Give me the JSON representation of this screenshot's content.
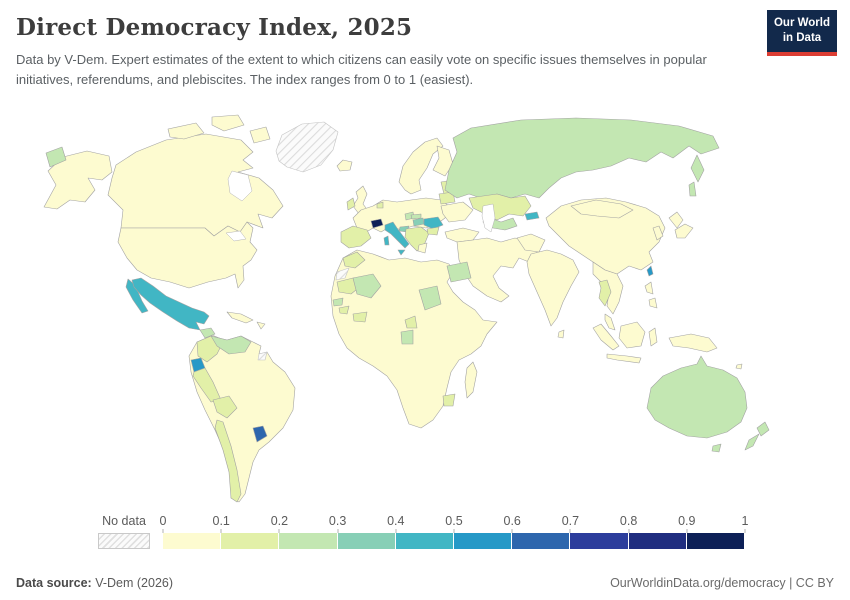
{
  "header": {
    "title": "Direct Democracy Index, 2025",
    "subtitle": "Data by V-Dem. Expert estimates of the extent to which citizens can easily vote on specific issues themselves in popular initiatives, referendums, and plebiscites. The index ranges from 0 to 1 (easiest).",
    "logo": {
      "line1": "Our World",
      "line2": "in Data",
      "bg_color": "#12294b",
      "accent_color": "#dc3d33"
    }
  },
  "legend": {
    "no_data_label": "No data",
    "tick_labels": [
      "0",
      "0.1",
      "0.2",
      "0.3",
      "0.4",
      "0.5",
      "0.6",
      "0.7",
      "0.8",
      "0.9",
      "1"
    ],
    "colors": [
      "#fdfbd0",
      "#e2f0a8",
      "#c3e7b2",
      "#87cfb6",
      "#41b6c4",
      "#2699c7",
      "#2d66ad",
      "#2c3d9c",
      "#202e80",
      "#0d2057"
    ]
  },
  "footer": {
    "source_label": "Data source:",
    "source_value": " V-Dem (2026)",
    "right_text": "OurWorldinData.org/democracy | CC BY"
  },
  "chart_data": {
    "type": "choropleth",
    "title": "Direct Democracy Index, 2025",
    "value_domain": [
      0,
      1
    ],
    "legend_bins": [
      0,
      0.1,
      0.2,
      0.3,
      0.4,
      0.5,
      0.6,
      0.7,
      0.8,
      0.9,
      1
    ],
    "legend_position": "bottom",
    "no_data_regions": [
      "Greenland",
      "Western Sahara",
      "Suriname"
    ],
    "country_classes": {
      "Switzerland": 9,
      "Uruguay": 6,
      "Ecuador": 5,
      "Taiwan": 5,
      "Mexico": 4,
      "Italy": 4,
      "Romania": 4,
      "Kyrgyzstan": 4,
      "Hungary": 3,
      "Croatia": 3,
      "Russia": 2,
      "Australia": 2,
      "New Zealand": 2,
      "Venezuela": 2,
      "Egypt": 2,
      "Chad": 2,
      "Mali": 2,
      "Senegal": 2,
      "Gabon": 2,
      "Uzbekistan": 2,
      "Czechia": 2,
      "Slovakia": 2,
      "Guatemala": 2,
      "Colombia": 1,
      "Peru": 1,
      "Bolivia": 1,
      "Chile": 1,
      "Spain": 1,
      "Ireland": 1,
      "Netherlands": 1,
      "Belarus": 1,
      "Bulgaria": 1,
      "Balkans": 1,
      "Baltic states": 1,
      "Kazakhstan": 1,
      "Thailand": 1,
      "Morocco": 1,
      "Mauritania": 1,
      "Guinea": 1,
      "Côte d'Ivoire & Ghana": 1,
      "Cameroon": 1,
      "Zimbabwe": 1
    },
    "countries_by_range": [
      {
        "range": "0.9–1",
        "countries": [
          "Switzerland"
        ]
      },
      {
        "range": "0.6–0.7",
        "countries": [
          "Uruguay"
        ]
      },
      {
        "range": "0.5–0.6",
        "countries": [
          "Ecuador",
          "Taiwan"
        ]
      },
      {
        "range": "0.4–0.5",
        "countries": [
          "Mexico",
          "Italy",
          "Romania",
          "Kyrgyzstan"
        ]
      },
      {
        "range": "0.3–0.4",
        "countries": [
          "Hungary",
          "Croatia"
        ]
      },
      {
        "range": "0.2–0.3",
        "countries": [
          "Russia",
          "Australia",
          "New Zealand",
          "Venezuela",
          "Egypt",
          "Chad",
          "Mali",
          "Senegal",
          "Gabon",
          "Uzbekistan",
          "Czechia",
          "Slovakia",
          "Guatemala"
        ]
      },
      {
        "range": "0.1–0.2",
        "countries": [
          "Colombia",
          "Peru",
          "Bolivia",
          "Chile",
          "Spain",
          "Ireland",
          "Netherlands",
          "Belarus",
          "Bulgaria",
          "Serbia",
          "Baltic states",
          "Kazakhstan",
          "Thailand",
          "Morocco",
          "Mauritania",
          "Guinea",
          "Côte d'Ivoire",
          "Ghana",
          "Cameroon",
          "Zimbabwe"
        ]
      },
      {
        "range": "0–0.1",
        "countries": [
          "United States",
          "Canada",
          "Brazil",
          "Argentina",
          "China",
          "India",
          "most remaining countries"
        ]
      }
    ]
  }
}
